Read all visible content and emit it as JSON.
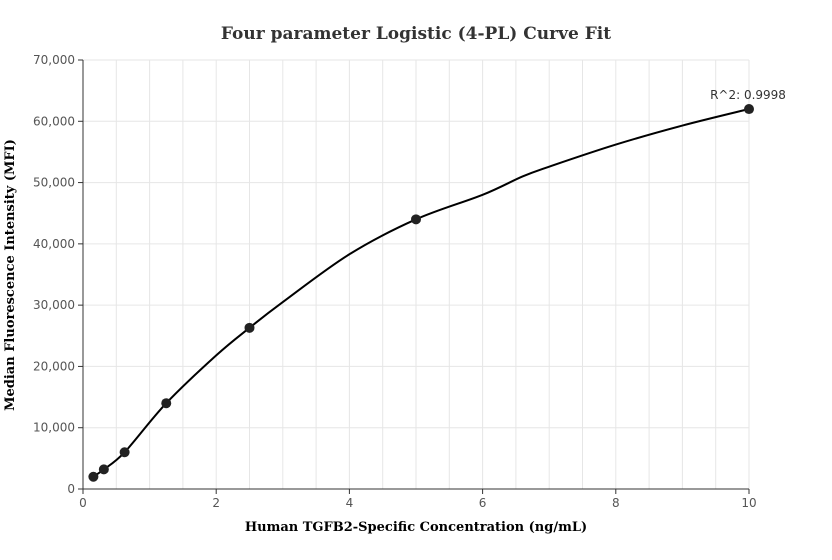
{
  "chart_data": {
    "type": "scatter",
    "title": "Four parameter Logistic (4-PL) Curve Fit",
    "xlabel": "Human TGFB2-Specific Concentration (ng/mL)",
    "ylabel": "Median Fluorescence Intensity (MFI)",
    "xlim": [
      0,
      10
    ],
    "ylim": [
      0,
      70000
    ],
    "x_ticks": [
      0,
      2,
      4,
      6,
      8,
      10
    ],
    "x_tick_labels": [
      "0",
      "2",
      "4",
      "6",
      "8",
      "10"
    ],
    "y_ticks": [
      0,
      10000,
      20000,
      30000,
      40000,
      50000,
      60000,
      70000
    ],
    "y_tick_labels": [
      "0",
      "10,000",
      "20,000",
      "30,000",
      "40,000",
      "50,000",
      "60,000",
      "70,000"
    ],
    "grid": true,
    "series": [
      {
        "points": [
          {
            "x": 0.156,
            "y": 2000
          },
          {
            "x": 0.313,
            "y": 3200
          },
          {
            "x": 0.625,
            "y": 6000
          },
          {
            "x": 1.25,
            "y": 14000
          },
          {
            "x": 2.5,
            "y": 26300
          },
          {
            "x": 5.0,
            "y": 44000
          },
          {
            "x": 10.0,
            "y": 62000
          }
        ],
        "color": "#222222"
      }
    ],
    "fit_curve": {
      "color": "#000000",
      "points": [
        [
          0.156,
          2000
        ],
        [
          0.313,
          3200
        ],
        [
          0.625,
          6000
        ],
        [
          1.25,
          14000
        ],
        [
          2.0,
          21800
        ],
        [
          2.5,
          26300
        ],
        [
          3.0,
          30500
        ],
        [
          4.0,
          38300
        ],
        [
          5.0,
          44000
        ],
        [
          6.0,
          48000
        ],
        [
          6.6,
          51000
        ],
        [
          7.0,
          52600
        ],
        [
          8.0,
          56200
        ],
        [
          9.0,
          59300
        ],
        [
          10.0,
          62000
        ]
      ]
    },
    "annotations": [
      {
        "text": "R^2: 0.9998",
        "x": 10.0,
        "y": 62000
      }
    ]
  }
}
